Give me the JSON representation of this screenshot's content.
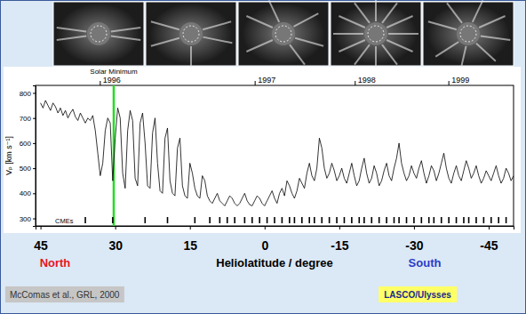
{
  "chart_data": {
    "type": "line",
    "xlabel": "Heliolatitude / degree",
    "ylabel": "Vₚ [km s⁻¹]",
    "color": "#000000",
    "xlim": [
      46,
      -50
    ],
    "xticks": [
      45,
      30,
      15,
      0,
      -15,
      -30,
      -45
    ],
    "ylim": [
      270,
      830
    ],
    "yticks": [
      300,
      400,
      500,
      600,
      700,
      800
    ],
    "x": [
      45,
      44.5,
      44,
      43.5,
      43,
      42.5,
      42,
      41.5,
      41,
      40.5,
      40,
      39.5,
      39,
      38.5,
      38,
      37.5,
      37,
      36.5,
      36,
      35.5,
      35,
      34.5,
      34,
      33.5,
      33,
      32.5,
      32,
      31.5,
      31,
      30.5,
      30,
      29.5,
      29,
      28.5,
      28,
      27.5,
      27,
      26.5,
      26,
      25.5,
      25,
      24.5,
      24,
      23.5,
      23,
      22.5,
      22,
      21.5,
      21,
      20.5,
      20,
      19.5,
      19,
      18.5,
      18,
      17.5,
      17,
      16.5,
      16,
      15.5,
      15,
      14.5,
      14,
      13.5,
      13,
      12.5,
      12,
      11.5,
      11,
      10.5,
      10,
      9.5,
      9,
      8.5,
      8,
      7.5,
      7,
      6.5,
      6,
      5.5,
      5,
      4.5,
      4,
      3.5,
      3,
      2.5,
      2,
      1.5,
      1,
      0.5,
      0,
      -0.5,
      -1,
      -1.5,
      -2,
      -2.5,
      -3,
      -3.5,
      -4,
      -4.5,
      -5,
      -5.5,
      -6,
      -6.5,
      -7,
      -7.5,
      -8,
      -8.5,
      -9,
      -9.5,
      -10,
      -10.5,
      -11,
      -11.5,
      -12,
      -12.5,
      -13,
      -13.5,
      -14,
      -14.5,
      -15,
      -15.5,
      -16,
      -16.5,
      -17,
      -17.5,
      -18,
      -18.5,
      -19,
      -19.5,
      -20,
      -20.5,
      -21,
      -21.5,
      -22,
      -22.5,
      -23,
      -23.5,
      -24,
      -24.5,
      -25,
      -25.5,
      -26,
      -26.5,
      -27,
      -27.5,
      -28,
      -28.5,
      -29,
      -29.5,
      -30,
      -30.5,
      -31,
      -31.5,
      -32,
      -32.5,
      -33,
      -33.5,
      -34,
      -34.5,
      -35,
      -35.5,
      -36,
      -36.5,
      -37,
      -37.5,
      -38,
      -38.5,
      -39,
      -39.5,
      -40,
      -40.5,
      -41,
      -41.5,
      -42,
      -42.5,
      -43,
      -43.5,
      -44,
      -44.5,
      -45,
      -45.5,
      -46,
      -46.5,
      -47,
      -47.5,
      -48,
      -48.5,
      -49,
      -49.5,
      -50
    ],
    "values": [
      760,
      740,
      770,
      750,
      730,
      760,
      745,
      720,
      740,
      710,
      730,
      700,
      720,
      735,
      705,
      690,
      720,
      700,
      680,
      700,
      690,
      710,
      650,
      560,
      470,
      520,
      650,
      700,
      680,
      450,
      620,
      740,
      700,
      480,
      420,
      650,
      730,
      690,
      460,
      430,
      680,
      720,
      600,
      430,
      420,
      640,
      700,
      520,
      410,
      400,
      620,
      660,
      450,
      400,
      390,
      580,
      620,
      430,
      390,
      380,
      520,
      480,
      420,
      390,
      380,
      470,
      450,
      390,
      370,
      360,
      380,
      400,
      370,
      360,
      350,
      370,
      390,
      380,
      360,
      350,
      360,
      380,
      400,
      370,
      355,
      350,
      370,
      390,
      380,
      360,
      350,
      370,
      390,
      410,
      380,
      360,
      400,
      420,
      390,
      450,
      430,
      400,
      380,
      410,
      460,
      440,
      420,
      480,
      520,
      470,
      450,
      500,
      620,
      580,
      500,
      460,
      480,
      520,
      490,
      450,
      470,
      500,
      460,
      440,
      480,
      520,
      470,
      430,
      450,
      500,
      540,
      480,
      440,
      460,
      510,
      480,
      430,
      450,
      490,
      520,
      470,
      450,
      500,
      540,
      600,
      520,
      480,
      450,
      470,
      510,
      480,
      460,
      500,
      530,
      480,
      440,
      470,
      510,
      490,
      450,
      480,
      520,
      560,
      500,
      460,
      440,
      480,
      510,
      470,
      450,
      490,
      530,
      500,
      460,
      480,
      510,
      470,
      440,
      460,
      490,
      470,
      450,
      480,
      510,
      470,
      440,
      460,
      500,
      480,
      450,
      470
    ],
    "cmes": {
      "label": "CMEs",
      "x": [
        36,
        30.5,
        24,
        19.5,
        14,
        11,
        9,
        7.5,
        6,
        4,
        2.5,
        1,
        -0.5,
        -2,
        -3.5,
        -5,
        -6,
        -7.5,
        -9,
        -10,
        -11.5,
        -13,
        -14.5,
        -16,
        -17.5,
        -19,
        -20,
        -21.5,
        -23,
        -24.5,
        -26,
        -27,
        -28.5,
        -30,
        -31.5,
        -33,
        -34,
        -35.5,
        -37,
        -38.5,
        -40,
        -41,
        -42.5,
        -44,
        -45.5,
        -47,
        -48.5
      ]
    },
    "annotations": [
      {
        "text": "Solar Minimum",
        "x": 30.3,
        "color": "#22dd22"
      },
      {
        "text": "1996",
        "x": 33
      },
      {
        "text": "1997",
        "x": 1.9
      },
      {
        "text": "1998",
        "x": -18.2
      },
      {
        "text": "1999",
        "x": -37
      }
    ],
    "hemispheres": [
      {
        "text": "North",
        "color": "#e8141e"
      },
      {
        "text": "South",
        "color": "#2a3cc8"
      }
    ],
    "source": "McComas et al., GRL, 2000",
    "credit": "LASCO/Ulysses"
  }
}
